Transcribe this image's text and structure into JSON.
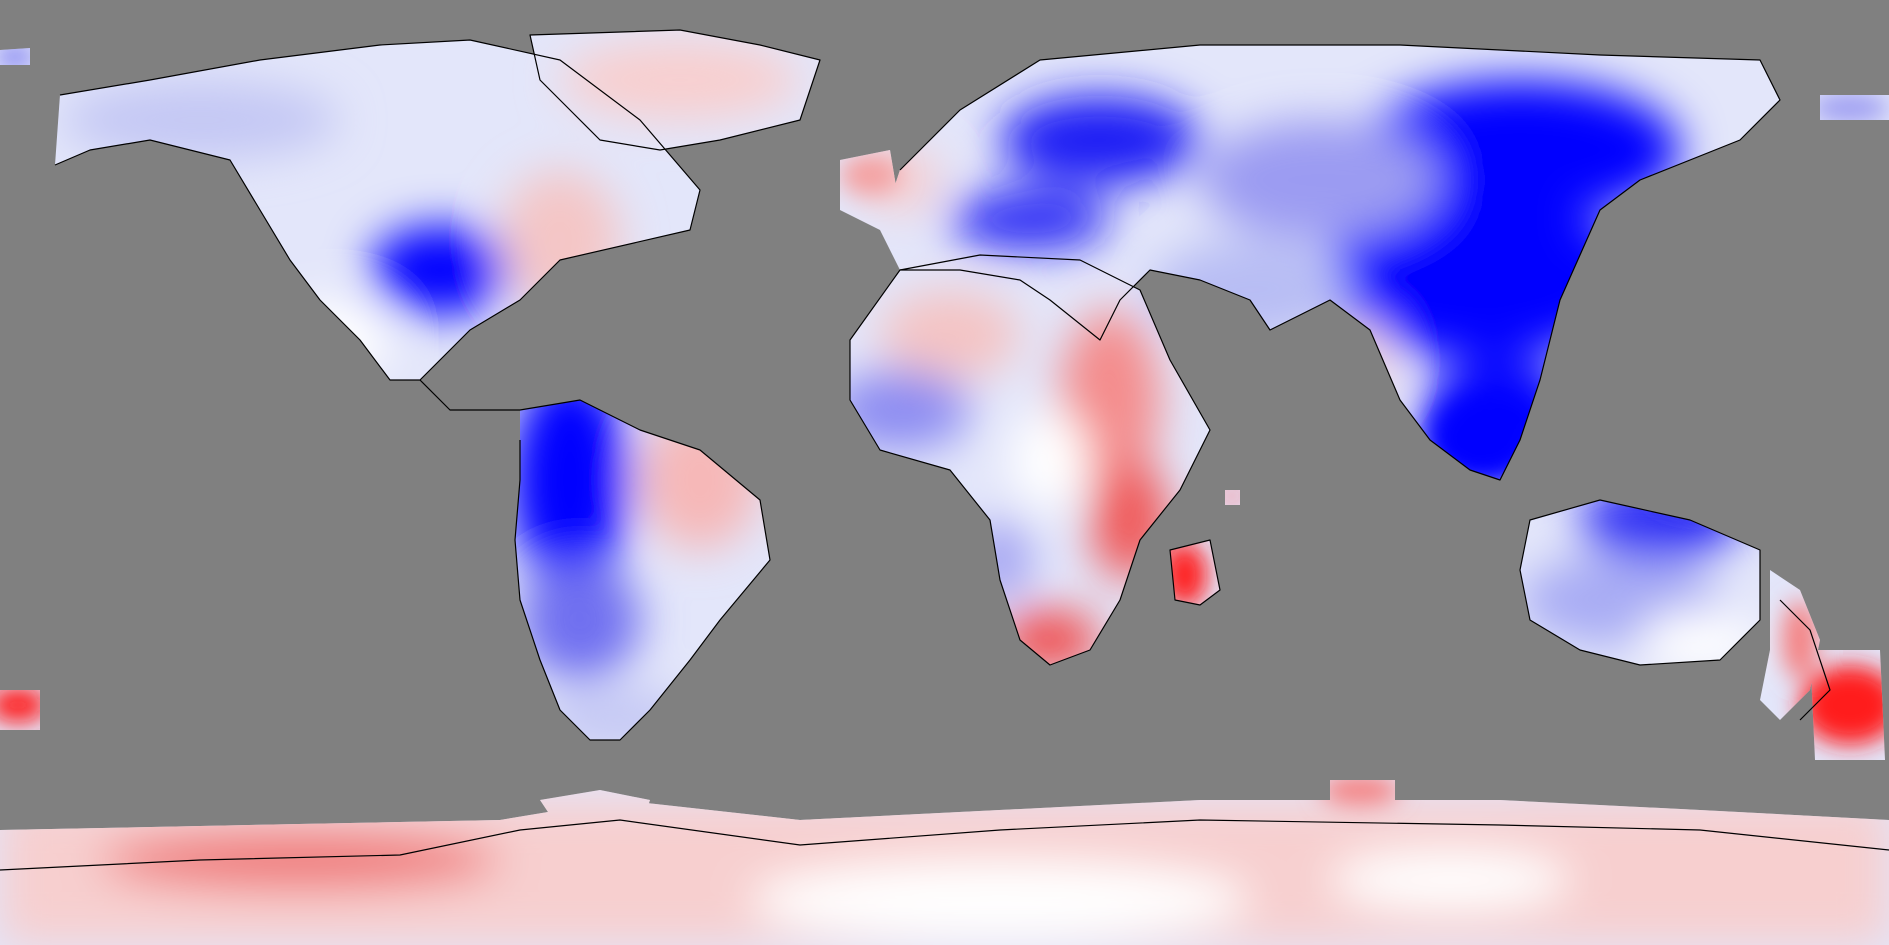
{
  "map": {
    "projection": "equirectangular",
    "colors": {
      "ocean": "#808080",
      "strong_negative": "#0000ff",
      "negative": "#8c8cf2",
      "weak_negative": "#d8dcf8",
      "neutral": "#ffffff",
      "weak_positive": "#f8d4d4",
      "positive": "#f09a9a",
      "strong_positive": "#ff1a1a",
      "coastline": "#000000"
    },
    "regions": [
      {
        "name": "north-america",
        "anomaly": "weak-negative"
      },
      {
        "name": "central-usa",
        "anomaly": "strong-negative"
      },
      {
        "name": "greenland",
        "anomaly": "weak-positive"
      },
      {
        "name": "south-america-west",
        "anomaly": "strong-negative"
      },
      {
        "name": "south-america-east",
        "anomaly": "weak-positive"
      },
      {
        "name": "europe",
        "anomaly": "negative"
      },
      {
        "name": "siberia",
        "anomaly": "strong-negative"
      },
      {
        "name": "east-asia",
        "anomaly": "strong-negative"
      },
      {
        "name": "africa",
        "anomaly": "mixed"
      },
      {
        "name": "east-africa",
        "anomaly": "positive"
      },
      {
        "name": "madagascar",
        "anomaly": "strong-positive"
      },
      {
        "name": "australia",
        "anomaly": "negative"
      },
      {
        "name": "new-zealand",
        "anomaly": "strong-positive"
      },
      {
        "name": "antarctica",
        "anomaly": "weak-positive"
      }
    ]
  }
}
